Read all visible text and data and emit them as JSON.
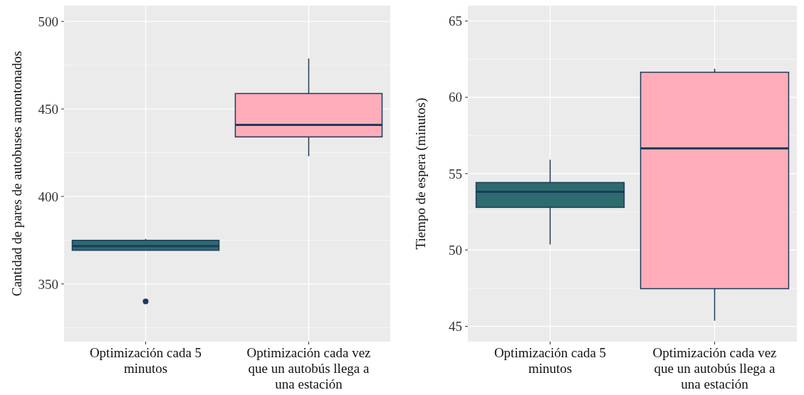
{
  "chart_data": [
    {
      "type": "box",
      "ylabel": "Cantidad de pares de autobuses amontonados",
      "categories": [
        "Optimización cada 5 minutos",
        "Optimización cada vez que un autobús llega a una estación"
      ],
      "colors": [
        "#2d6b6e",
        "#ffadb9"
      ],
      "boxes": [
        {
          "low": 369.2,
          "q1": 369.2,
          "median": 371.6,
          "q3": 374.9,
          "high": 375.7,
          "outliers": [
            340
          ]
        },
        {
          "low": 423,
          "q1": 434,
          "median": 440.9,
          "q3": 458.8,
          "high": 478.8
        }
      ],
      "ylim": [
        317,
        509
      ],
      "yticks": [
        350,
        400,
        450,
        500
      ],
      "grid": true
    },
    {
      "type": "box",
      "ylabel": "Tiempo de espera (minutos)",
      "categories": [
        "Optimización cada 5 minutos",
        "Optimización cada vez que un autobús llega a una estación"
      ],
      "colors": [
        "#2d6b6e",
        "#ffadb9"
      ],
      "boxes": [
        {
          "low": 50.36,
          "q1": 52.79,
          "median": 53.81,
          "q3": 54.42,
          "high": 55.91
        },
        {
          "low": 45.37,
          "q1": 47.47,
          "median": 56.66,
          "q3": 61.64,
          "high": 61.87
        }
      ],
      "ylim": [
        44,
        66
      ],
      "yticks": [
        45,
        50,
        55,
        60,
        65
      ],
      "grid": true
    }
  ]
}
